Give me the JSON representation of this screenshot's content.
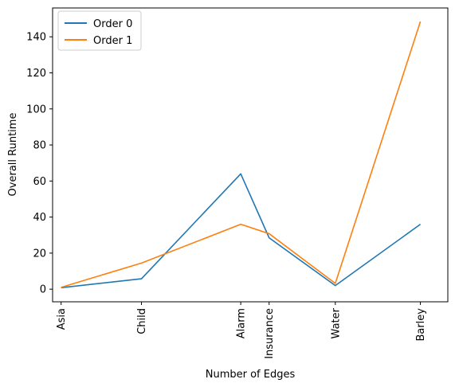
{
  "chart_data": {
    "type": "line",
    "xlabel": "Number of Edges",
    "ylabel": "Overall Runtime",
    "x_scale": "numeric (edge count), labeled with network names",
    "categories": [
      "Asia",
      "Child",
      "Insurance",
      "Water",
      "Alarm",
      "Barley"
    ],
    "x": [
      8,
      25,
      52,
      66,
      46,
      84
    ],
    "series": [
      {
        "name": "Order 0",
        "color": "#1f77b4",
        "values": [
          0.8,
          5.8,
          28.5,
          2.0,
          64.0,
          36.0
        ]
      },
      {
        "name": "Order 1",
        "color": "#ff7f0e",
        "values": [
          1.0,
          14.5,
          30.8,
          3.2,
          36.0,
          148.5
        ]
      }
    ],
    "yticks": [
      0,
      20,
      40,
      60,
      80,
      100,
      120,
      140
    ],
    "ylim": [
      -7,
      156
    ],
    "legend": "top-left",
    "grid": false
  }
}
